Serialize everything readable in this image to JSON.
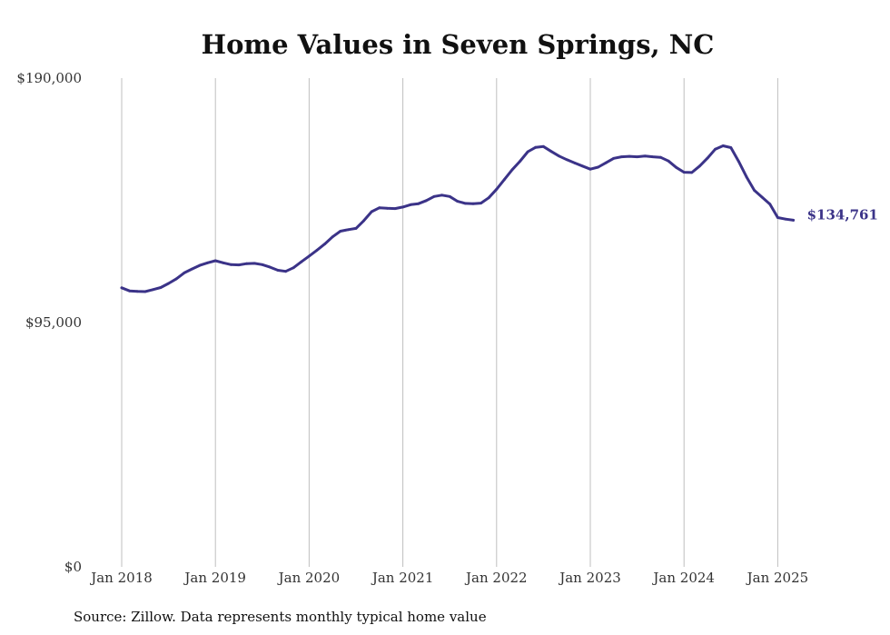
{
  "chart_data": {
    "type": "line",
    "title": "Home Values in Seven Springs, NC",
    "xlabel": "",
    "ylabel": "",
    "ylim": [
      0,
      190000
    ],
    "y_ticks": [
      {
        "value": 0,
        "label": "$0"
      },
      {
        "value": 95000,
        "label": "$95,000"
      },
      {
        "value": 190000,
        "label": "$190,000"
      }
    ],
    "x_ticks": [
      {
        "value": "2018-01",
        "label": "Jan 2018"
      },
      {
        "value": "2019-01",
        "label": "Jan 2019"
      },
      {
        "value": "2020-01",
        "label": "Jan 2020"
      },
      {
        "value": "2021-01",
        "label": "Jan 2021"
      },
      {
        "value": "2022-01",
        "label": "Jan 2022"
      },
      {
        "value": "2023-01",
        "label": "Jan 2023"
      },
      {
        "value": "2024-01",
        "label": "Jan 2024"
      },
      {
        "value": "2025-01",
        "label": "Jan 2025"
      }
    ],
    "grid": "vertical",
    "line_color": "#3b3388",
    "end_label": "$134,761",
    "series": [
      {
        "x": [
          "2018-01",
          "2018-02",
          "2018-03",
          "2018-04",
          "2018-05",
          "2018-06",
          "2018-07",
          "2018-08",
          "2018-09",
          "2018-10",
          "2018-11",
          "2018-12",
          "2019-01",
          "2019-02",
          "2019-03",
          "2019-04",
          "2019-05",
          "2019-06",
          "2019-07",
          "2019-08",
          "2019-09",
          "2019-10",
          "2019-11",
          "2019-12",
          "2020-01",
          "2020-02",
          "2020-03",
          "2020-04",
          "2020-05",
          "2020-06",
          "2020-07",
          "2020-08",
          "2020-09",
          "2020-10",
          "2020-11",
          "2020-12",
          "2021-01",
          "2021-02",
          "2021-03",
          "2021-04",
          "2021-05",
          "2021-06",
          "2021-07",
          "2021-08",
          "2021-09",
          "2021-10",
          "2021-11",
          "2021-12",
          "2022-01",
          "2022-02",
          "2022-03",
          "2022-04",
          "2022-05",
          "2022-06",
          "2022-07",
          "2022-08",
          "2022-09",
          "2022-10",
          "2022-11",
          "2022-12",
          "2023-01",
          "2023-02",
          "2023-03",
          "2023-04",
          "2023-05",
          "2023-06",
          "2023-07",
          "2023-08",
          "2023-09",
          "2023-10",
          "2023-11",
          "2023-12",
          "2024-01",
          "2024-02",
          "2024-03",
          "2024-04",
          "2024-05",
          "2024-06",
          "2024-07",
          "2024-08",
          "2024-09",
          "2024-10",
          "2024-11",
          "2024-12",
          "2025-01",
          "2025-02",
          "2025-03"
        ],
        "values": [
          108500,
          107300,
          107100,
          107000,
          107800,
          108600,
          110200,
          112000,
          114300,
          115800,
          117200,
          118200,
          119000,
          118200,
          117500,
          117400,
          117900,
          118000,
          117500,
          116500,
          115300,
          114900,
          116300,
          118600,
          120800,
          123100,
          125500,
          128300,
          130500,
          131100,
          131600,
          134600,
          138100,
          139600,
          139400,
          139300,
          139900,
          140800,
          141200,
          142400,
          144000,
          144500,
          144000,
          142100,
          141300,
          141200,
          141400,
          143500,
          146800,
          150600,
          154400,
          157700,
          161400,
          163100,
          163400,
          161500,
          159700,
          158300,
          157000,
          155800,
          154600,
          155400,
          157100,
          158800,
          159400,
          159600,
          159400,
          159700,
          159400,
          159200,
          157800,
          155300,
          153400,
          153300,
          155800,
          158900,
          162400,
          163700,
          163000,
          157600,
          151600,
          146400,
          143700,
          141000,
          135800,
          135200,
          134761
        ]
      }
    ]
  },
  "source_text": "Source: Zillow. Data represents monthly typical home value"
}
